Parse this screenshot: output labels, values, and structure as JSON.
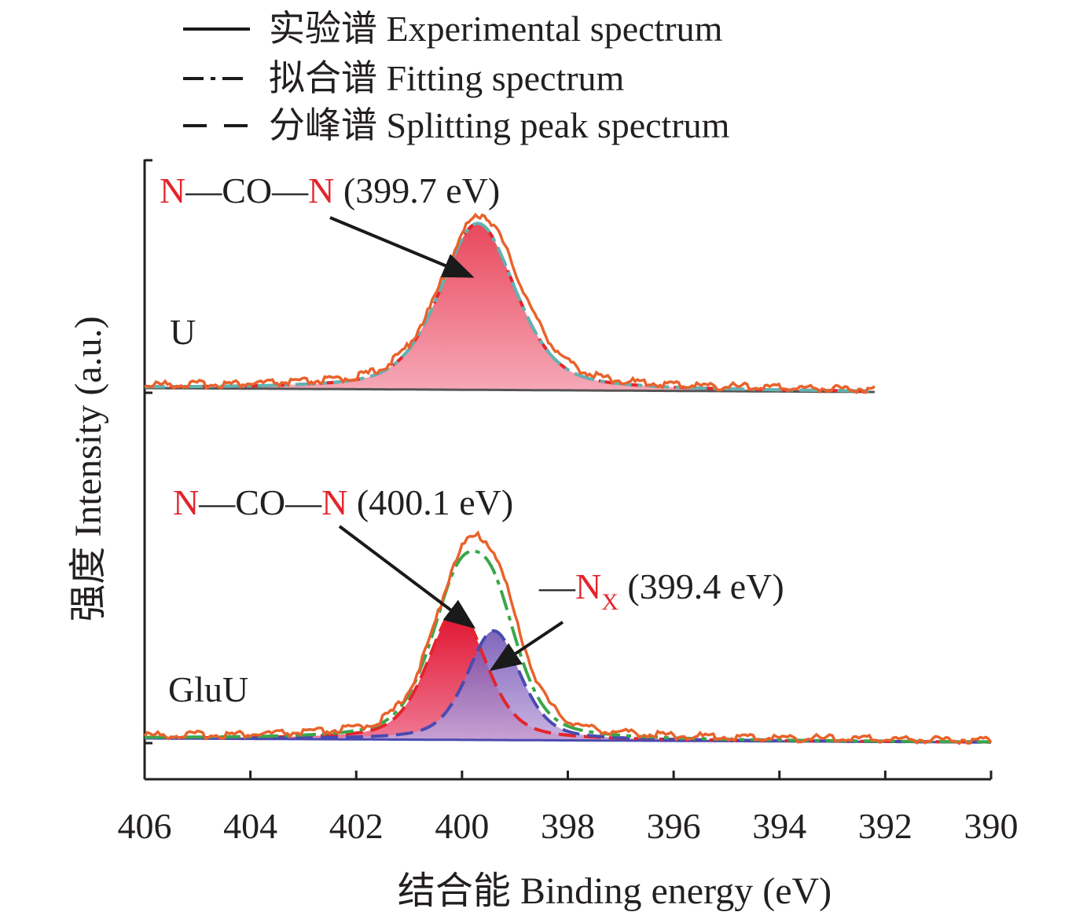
{
  "chart_data": {
    "type": "area",
    "xlabel": "结合能 Binding energy (eV)",
    "ylabel": "强度 Intensity (a.u.)",
    "xlim": [
      406,
      390
    ],
    "x_reversed": true,
    "x_ticks": [
      "406",
      "404",
      "402",
      "400",
      "398",
      "396",
      "394",
      "392",
      "390"
    ],
    "legend": [
      {
        "label": "实验谱 Experimental spectrum",
        "style": "solid"
      },
      {
        "label": "拟合谱 Fitting spectrum",
        "style": "dash-dot"
      },
      {
        "label": "分峰谱 Splitting peak spectrum",
        "style": "dashed"
      }
    ],
    "panels": [
      {
        "sample": "U",
        "x_range": [
          406,
          392.2
        ],
        "peaks": [
          {
            "bond_a": "N",
            "bond_mid": "—CO—",
            "bond_b": "N",
            "energy": "(399.7 eV)",
            "center": 399.7,
            "amplitude": 1.0,
            "fwhm": 1.7,
            "color": "#ee5a6e"
          }
        ]
      },
      {
        "sample": "GluU",
        "x_range": [
          406,
          390
        ],
        "peaks": [
          {
            "bond_a": "N",
            "bond_mid": "—CO—",
            "bond_b": "N",
            "energy": "(400.1 eV)",
            "center": 400.1,
            "amplitude": 0.85,
            "fwhm": 1.3,
            "color": "#e8283c"
          },
          {
            "bond_pre": "—",
            "bond_a": "N",
            "sub": "X",
            "energy": "(399.4 eV)",
            "center": 399.4,
            "amplitude": 0.71,
            "fwhm": 1.2,
            "color": "#8a6ac0"
          }
        ]
      }
    ],
    "colors": {
      "experimental": "#e9622c",
      "fitting_U": "#5fb4b4",
      "fitting_GluU": "#3aa64a",
      "split_U": "#e3242b",
      "split_GluU": "#4a4ab0",
      "baseline": "#555555",
      "label_red": "#e3242b"
    }
  }
}
